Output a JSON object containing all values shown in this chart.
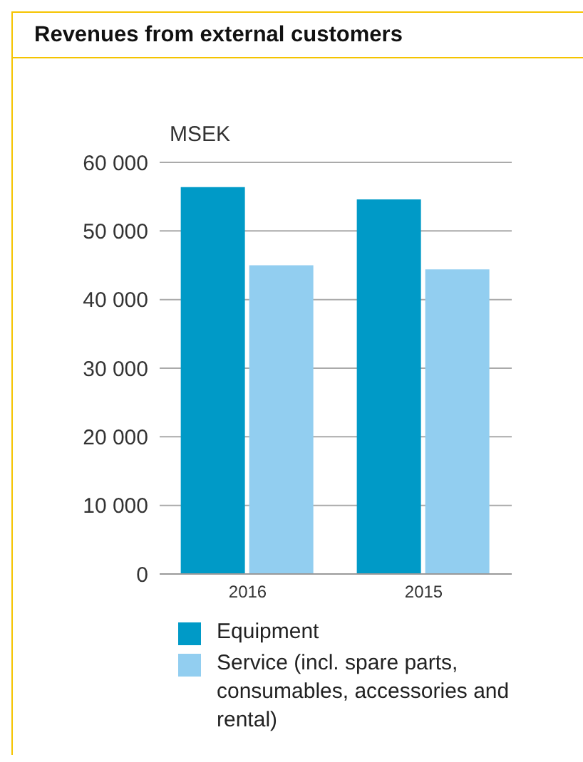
{
  "chart_data": {
    "type": "bar",
    "title": "Revenues from external customers",
    "ylabel": "MSEK",
    "categories": [
      "2016",
      "2015"
    ],
    "series": [
      {
        "name": "Equipment",
        "color": "#009ac7",
        "values": [
          56400,
          54600
        ]
      },
      {
        "name": "Service (incl. spare parts, consumables, accessories and rental)",
        "color": "#92cef0",
        "values": [
          45000,
          44400
        ]
      }
    ],
    "ylim": [
      0,
      60000
    ],
    "yticks": [
      {
        "value": 0,
        "label": "0"
      },
      {
        "value": 10000,
        "label": "10 000"
      },
      {
        "value": 20000,
        "label": "20 000"
      },
      {
        "value": 30000,
        "label": "30 000"
      },
      {
        "value": 40000,
        "label": "40 000"
      },
      {
        "value": 50000,
        "label": "50 000"
      },
      {
        "value": 60000,
        "label": "60 000"
      }
    ],
    "grid": "y",
    "legend": "bottom"
  }
}
